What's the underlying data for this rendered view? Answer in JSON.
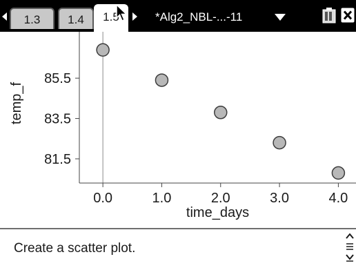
{
  "tabs": [
    {
      "label": "1.3",
      "active": false
    },
    {
      "label": "1.4",
      "active": false
    },
    {
      "label": "1.5",
      "active": true
    }
  ],
  "document": {
    "title": "*Alg2_NBL-...-11"
  },
  "entry_line": {
    "text": "Create a scatter plot."
  },
  "icons": {
    "tab_left": "triangle-left-icon",
    "tab_right": "triangle-right-icon",
    "doc_menu": "chevron-down-icon",
    "battery": "battery-icon",
    "close": "close-icon",
    "cursor": "mouse-pointer-icon",
    "scroll": "scroll-arrows-icon"
  },
  "colors": {
    "point_fill": "#b8b8b8",
    "point_stroke": "#3c3c3c",
    "axis": "#444444"
  },
  "chart_data": {
    "type": "scatter",
    "xlabel": "time_days",
    "ylabel": "temp_f",
    "x_ticks": [
      "0.0",
      "1.0",
      "2.0",
      "3.0",
      "4.0"
    ],
    "y_ticks": [
      "81.5",
      "83.5",
      "85.5"
    ],
    "xlim": [
      -0.4,
      4.3
    ],
    "ylim": [
      80.3,
      87.8
    ],
    "series": [
      {
        "x": [
          0,
          1,
          2,
          3,
          4
        ],
        "y": [
          86.9,
          85.4,
          83.8,
          82.3,
          80.8
        ]
      }
    ]
  }
}
